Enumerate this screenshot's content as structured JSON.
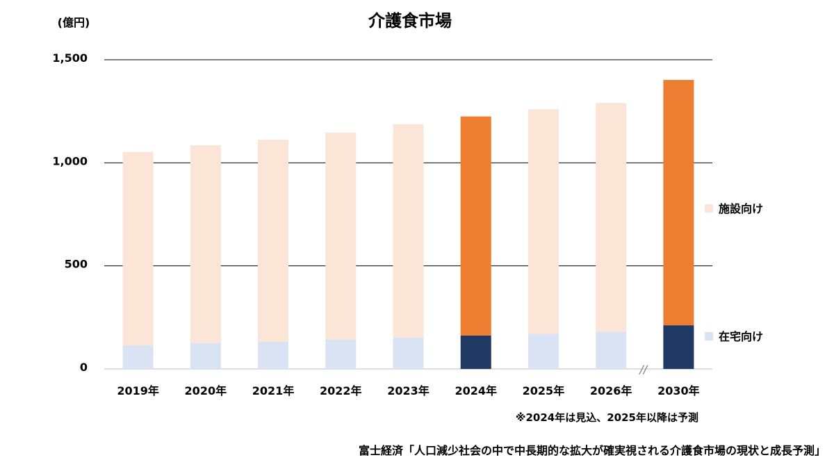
{
  "chart_data": {
    "type": "bar",
    "stacked": true,
    "title": "介護食市場",
    "unit_label": "(億円)",
    "categories": [
      "2019年",
      "2020年",
      "2021年",
      "2022年",
      "2023年",
      "2024年",
      "2025年",
      "2026年",
      "2030年"
    ],
    "series": [
      {
        "name": "在宅向け",
        "values": [
          115,
          125,
          132,
          142,
          152,
          162,
          170,
          180,
          212
        ]
      },
      {
        "name": "施設向け",
        "values": [
          938,
          960,
          980,
          1005,
          1035,
          1063,
          1090,
          1110,
          1190
        ]
      }
    ],
    "highlight_category": "2024年",
    "ylim": [
      0,
      1500
    ],
    "yticks": [
      0,
      500,
      1000,
      1500
    ],
    "ytick_labels": [
      "0",
      "500",
      "1,000",
      "1,500"
    ],
    "grid": true,
    "legend_position": "right",
    "axis_break": "//",
    "colors": {
      "在宅向け": "#dae3f3",
      "施設向け": "#fbe5d6",
      "在宅向け_highlight": "#203864",
      "施設向け_highlight": "#ed7d31",
      "grid": "#000000"
    },
    "note": "※2024年は見込、2025年以降は予測",
    "source": "富士経済「人口減少社会の中で中長期的な拡大が確実視される介護食市場の現状と成長予測」"
  }
}
